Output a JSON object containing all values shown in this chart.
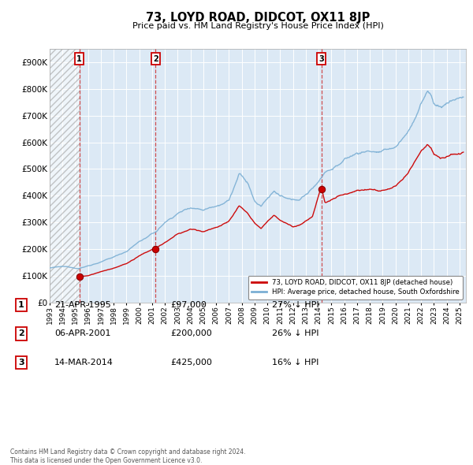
{
  "title": "73, LOYD ROAD, DIDCOT, OX11 8JP",
  "subtitle": "Price paid vs. HM Land Registry's House Price Index (HPI)",
  "ylim": [
    0,
    950000
  ],
  "xlim_start": 1993.0,
  "xlim_end": 2025.5,
  "hatch_end_year": 1995.32,
  "sale_points": [
    {
      "year": 1995.32,
      "price": 97000,
      "label": "1"
    },
    {
      "year": 2001.27,
      "price": 200000,
      "label": "2"
    },
    {
      "year": 2014.21,
      "price": 425000,
      "label": "3"
    }
  ],
  "legend_entries": [
    "73, LOYD ROAD, DIDCOT, OX11 8JP (detached house)",
    "HPI: Average price, detached house, South Oxfordshire"
  ],
  "table_rows": [
    [
      "1",
      "21-APR-1995",
      "£97,000",
      "27% ↓ HPI"
    ],
    [
      "2",
      "06-APR-2001",
      "£200,000",
      "26% ↓ HPI"
    ],
    [
      "3",
      "14-MAR-2014",
      "£425,000",
      "16% ↓ HPI"
    ]
  ],
  "footnote": "Contains HM Land Registry data © Crown copyright and database right 2024.\nThis data is licensed under the Open Government Licence v3.0.",
  "red_line_color": "#cc0000",
  "blue_line_color": "#7bafd4",
  "hatch_color": "#aaaaaa",
  "background_plot": "#dce9f5",
  "grid_color": "#ffffff",
  "vline_color": "#cc3333",
  "hpi_anchors": {
    "1993.0": 130000,
    "1994.0": 133000,
    "1995.3": 128000,
    "1996.0": 138000,
    "1997.0": 153000,
    "1998.0": 170000,
    "1999.0": 193000,
    "2000.0": 230000,
    "2001.3": 265000,
    "2002.0": 300000,
    "2003.0": 335000,
    "2004.0": 360000,
    "2005.0": 355000,
    "2006.0": 375000,
    "2007.0": 400000,
    "2007.8": 500000,
    "2008.5": 460000,
    "2009.0": 390000,
    "2009.5": 370000,
    "2010.0": 400000,
    "2010.5": 430000,
    "2011.0": 410000,
    "2011.5": 395000,
    "2012.0": 385000,
    "2012.5": 390000,
    "2013.0": 410000,
    "2013.5": 430000,
    "2014.0": 460000,
    "2014.5": 500000,
    "2015.0": 510000,
    "2016.0": 545000,
    "2017.0": 570000,
    "2018.0": 580000,
    "2019.0": 575000,
    "2020.0": 590000,
    "2020.5": 620000,
    "2021.0": 650000,
    "2021.5": 700000,
    "2022.0": 760000,
    "2022.5": 800000,
    "2022.8": 790000,
    "2023.0": 760000,
    "2023.5": 745000,
    "2024.0": 760000,
    "2024.5": 775000,
    "2025.3": 790000
  },
  "red_anchors": {
    "1995.32": 97000,
    "1996.0": 100000,
    "1997.0": 115000,
    "1998.0": 128000,
    "1999.0": 145000,
    "2000.0": 172000,
    "2001.27": 200000,
    "2002.0": 220000,
    "2003.0": 250000,
    "2004.0": 265000,
    "2005.0": 258000,
    "2006.0": 275000,
    "2007.0": 295000,
    "2007.8": 355000,
    "2008.5": 320000,
    "2009.0": 285000,
    "2009.5": 270000,
    "2010.0": 295000,
    "2010.5": 315000,
    "2011.0": 300000,
    "2011.5": 290000,
    "2012.0": 280000,
    "2012.5": 285000,
    "2013.0": 300000,
    "2013.5": 315000,
    "2014.21": 425000,
    "2014.5": 365000,
    "2015.0": 375000,
    "2016.0": 400000,
    "2017.0": 420000,
    "2018.0": 425000,
    "2019.0": 420000,
    "2020.0": 435000,
    "2020.5": 455000,
    "2021.0": 478000,
    "2021.5": 515000,
    "2022.0": 560000,
    "2022.5": 590000,
    "2022.8": 580000,
    "2023.0": 558000,
    "2023.5": 548000,
    "2024.0": 558000,
    "2024.5": 570000,
    "2025.3": 580000
  }
}
